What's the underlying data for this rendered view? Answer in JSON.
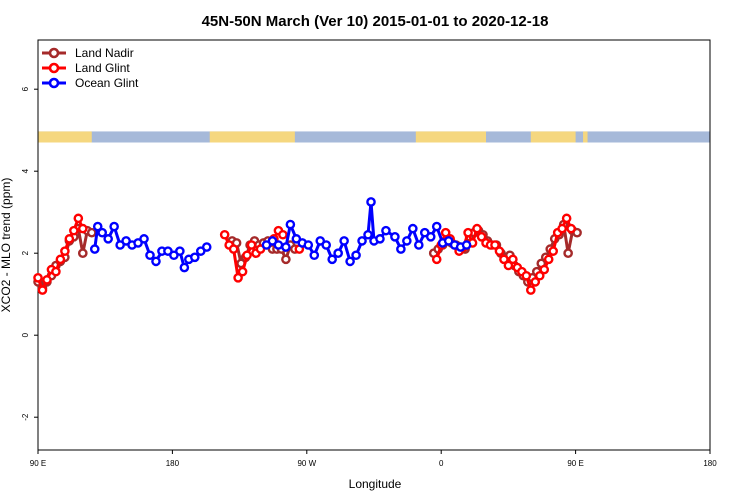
{
  "chart_data": {
    "type": "line",
    "title": "45N-50N March (Ver 10)   2015-01-01 to 2020-12-18",
    "xlabel": "Longitude",
    "ylabel": "XCO2 - MLO trend (ppm)",
    "xlim": [
      90,
      450
    ],
    "ylim": [
      -2.8,
      7.2
    ],
    "x_ticks": [
      {
        "value": 90,
        "label": "90 E"
      },
      {
        "value": 180,
        "label": "180"
      },
      {
        "value": 270,
        "label": "90 W"
      },
      {
        "value": 360,
        "label": "0"
      },
      {
        "value": 450,
        "label": "90 E"
      },
      {
        "value": 540,
        "label": "180"
      }
    ],
    "y_ticks": [
      -2,
      0,
      2,
      4,
      6
    ],
    "xlim_full": [
      90,
      540
    ],
    "legend_position": "top-left",
    "map_strip": {
      "y_range": [
        4.7,
        4.97
      ],
      "ocean_color": "#a6b9d9",
      "land_color": "#f5d77f"
    },
    "series": [
      {
        "name": "Land Nadir",
        "color": "#a52a2a",
        "points": [
          [
            90,
            1.3
          ],
          [
            93,
            1.15
          ],
          [
            96,
            1.3
          ],
          [
            99,
            1.45
          ],
          [
            102,
            1.7
          ],
          [
            105,
            1.8
          ],
          [
            108,
            1.9
          ],
          [
            111,
            2.3
          ],
          [
            114,
            2.4
          ],
          [
            117,
            2.6
          ],
          [
            120,
            2.0
          ],
          [
            123,
            2.55
          ],
          [
            126,
            2.5
          ],
          [
            220,
            2.3
          ],
          [
            223,
            2.25
          ],
          [
            226,
            1.75
          ],
          [
            229,
            1.9
          ],
          [
            232,
            2.2
          ],
          [
            235,
            2.3
          ],
          [
            238,
            2.2
          ],
          [
            241,
            2.25
          ],
          [
            244,
            2.3
          ],
          [
            247,
            2.1
          ],
          [
            250,
            2.1
          ],
          [
            253,
            2.1
          ],
          [
            256,
            1.85
          ],
          [
            259,
            2.2
          ],
          [
            262,
            2.1
          ],
          [
            355,
            2.0
          ],
          [
            358,
            2.1
          ],
          [
            361,
            2.2
          ],
          [
            364,
            2.3
          ],
          [
            367,
            2.25
          ],
          [
            370,
            2.2
          ],
          [
            373,
            2.15
          ],
          [
            376,
            2.1
          ],
          [
            379,
            2.4
          ],
          [
            382,
            2.5
          ],
          [
            385,
            2.55
          ],
          [
            388,
            2.45
          ],
          [
            391,
            2.3
          ],
          [
            394,
            2.2
          ],
          [
            397,
            2.2
          ],
          [
            400,
            2.0
          ],
          [
            403,
            1.9
          ],
          [
            406,
            1.95
          ],
          [
            409,
            1.7
          ],
          [
            412,
            1.55
          ],
          [
            415,
            1.45
          ],
          [
            418,
            1.3
          ],
          [
            421,
            1.4
          ],
          [
            424,
            1.55
          ],
          [
            427,
            1.75
          ],
          [
            430,
            1.9
          ],
          [
            433,
            2.1
          ],
          [
            436,
            2.35
          ],
          [
            439,
            2.45
          ],
          [
            442,
            2.7
          ],
          [
            445,
            2.0
          ],
          [
            448,
            2.55
          ],
          [
            451,
            2.5
          ]
        ]
      },
      {
        "name": "Land Glint",
        "color": "#ff0000",
        "points": [
          [
            90,
            1.4
          ],
          [
            93,
            1.1
          ],
          [
            96,
            1.35
          ],
          [
            99,
            1.6
          ],
          [
            102,
            1.55
          ],
          [
            105,
            1.85
          ],
          [
            108,
            2.05
          ],
          [
            111,
            2.35
          ],
          [
            114,
            2.55
          ],
          [
            117,
            2.85
          ],
          [
            120,
            2.6
          ],
          [
            215,
            2.45
          ],
          [
            218,
            2.2
          ],
          [
            221,
            2.1
          ],
          [
            224,
            1.4
          ],
          [
            227,
            1.55
          ],
          [
            230,
            1.95
          ],
          [
            233,
            2.2
          ],
          [
            236,
            2.0
          ],
          [
            239,
            2.1
          ],
          [
            248,
            2.35
          ],
          [
            251,
            2.55
          ],
          [
            254,
            2.45
          ],
          [
            265,
            2.1
          ],
          [
            357,
            1.85
          ],
          [
            360,
            2.2
          ],
          [
            363,
            2.5
          ],
          [
            366,
            2.35
          ],
          [
            369,
            2.2
          ],
          [
            372,
            2.05
          ],
          [
            375,
            2.15
          ],
          [
            378,
            2.5
          ],
          [
            381,
            2.25
          ],
          [
            384,
            2.6
          ],
          [
            387,
            2.4
          ],
          [
            390,
            2.25
          ],
          [
            393,
            2.2
          ],
          [
            396,
            2.2
          ],
          [
            399,
            2.05
          ],
          [
            402,
            1.85
          ],
          [
            405,
            1.7
          ],
          [
            408,
            1.85
          ],
          [
            411,
            1.65
          ],
          [
            414,
            1.55
          ],
          [
            417,
            1.45
          ],
          [
            420,
            1.1
          ],
          [
            423,
            1.3
          ],
          [
            426,
            1.45
          ],
          [
            429,
            1.6
          ],
          [
            432,
            1.85
          ],
          [
            435,
            2.05
          ],
          [
            438,
            2.5
          ],
          [
            441,
            2.6
          ],
          [
            444,
            2.85
          ],
          [
            447,
            2.6
          ]
        ]
      },
      {
        "name": "Ocean Glint",
        "color": "#0000ff",
        "points": [
          [
            128,
            2.1
          ],
          [
            130,
            2.65
          ],
          [
            133,
            2.5
          ],
          [
            137,
            2.35
          ],
          [
            141,
            2.65
          ],
          [
            145,
            2.2
          ],
          [
            149,
            2.3
          ],
          [
            153,
            2.2
          ],
          [
            157,
            2.25
          ],
          [
            161,
            2.35
          ],
          [
            165,
            1.95
          ],
          [
            169,
            1.8
          ],
          [
            173,
            2.05
          ],
          [
            177,
            2.05
          ],
          [
            181,
            1.95
          ],
          [
            185,
            2.05
          ],
          [
            188,
            1.65
          ],
          [
            191,
            1.85
          ],
          [
            195,
            1.9
          ],
          [
            199,
            2.05
          ],
          [
            203,
            2.15
          ],
          [
            243,
            2.2
          ],
          [
            247,
            2.3
          ],
          [
            251,
            2.2
          ],
          [
            256,
            2.15
          ],
          [
            259,
            2.7
          ],
          [
            263,
            2.35
          ],
          [
            267,
            2.25
          ],
          [
            271,
            2.2
          ],
          [
            275,
            1.95
          ],
          [
            279,
            2.3
          ],
          [
            283,
            2.2
          ],
          [
            287,
            1.85
          ],
          [
            291,
            2.0
          ],
          [
            295,
            2.3
          ],
          [
            299,
            1.8
          ],
          [
            303,
            1.95
          ],
          [
            307,
            2.3
          ],
          [
            311,
            2.45
          ],
          [
            313,
            3.25
          ],
          [
            315,
            2.3
          ],
          [
            319,
            2.35
          ],
          [
            323,
            2.55
          ],
          [
            329,
            2.4
          ],
          [
            333,
            2.1
          ],
          [
            337,
            2.3
          ],
          [
            341,
            2.6
          ],
          [
            345,
            2.2
          ],
          [
            349,
            2.5
          ],
          [
            353,
            2.4
          ],
          [
            357,
            2.65
          ],
          [
            361,
            2.25
          ],
          [
            365,
            2.3
          ],
          [
            369,
            2.2
          ],
          [
            373,
            2.15
          ],
          [
            377,
            2.2
          ]
        ]
      }
    ]
  }
}
